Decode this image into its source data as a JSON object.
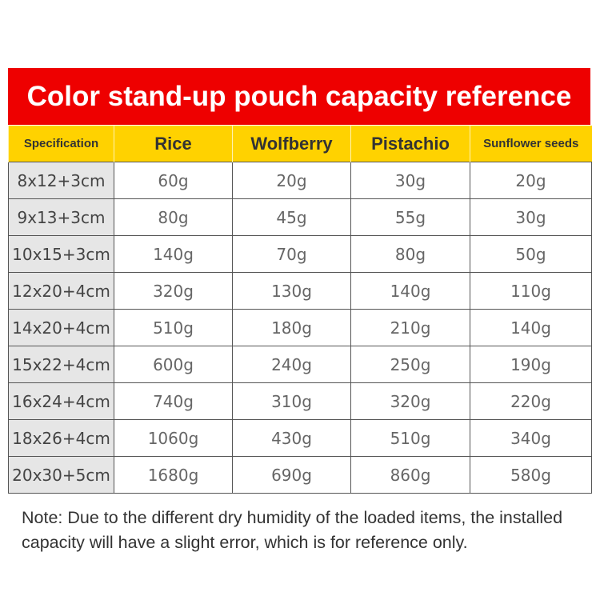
{
  "title": "Color stand-up pouch capacity reference",
  "table": {
    "headers": [
      "Specification",
      "Rice",
      "Wolfberry",
      "Pistachio",
      "Sunflower seeds"
    ],
    "rows": [
      [
        "8x12+3cm",
        "60g",
        "20g",
        "30g",
        "20g"
      ],
      [
        "9x13+3cm",
        "80g",
        "45g",
        "55g",
        "30g"
      ],
      [
        "10x15+3cm",
        "140g",
        "70g",
        "80g",
        "50g"
      ],
      [
        "12x20+4cm",
        "320g",
        "130g",
        "140g",
        "110g"
      ],
      [
        "14x20+4cm",
        "510g",
        "180g",
        "210g",
        "140g"
      ],
      [
        "15x22+4cm",
        "600g",
        "240g",
        "250g",
        "190g"
      ],
      [
        "16x24+4cm",
        "740g",
        "310g",
        "320g",
        "220g"
      ],
      [
        "18x26+4cm",
        "1060g",
        "430g",
        "510g",
        "340g"
      ],
      [
        "20x30+5cm",
        "1680g",
        "690g",
        "860g",
        "580g"
      ]
    ]
  },
  "note": "Note: Due to the different dry humidity of the loaded items, the installed capacity will have a slight error, which is for reference only.",
  "colors": {
    "title_bg": "#ee0000",
    "header_bg": "#ffd200",
    "spec_bg": "#e6e6e6"
  }
}
